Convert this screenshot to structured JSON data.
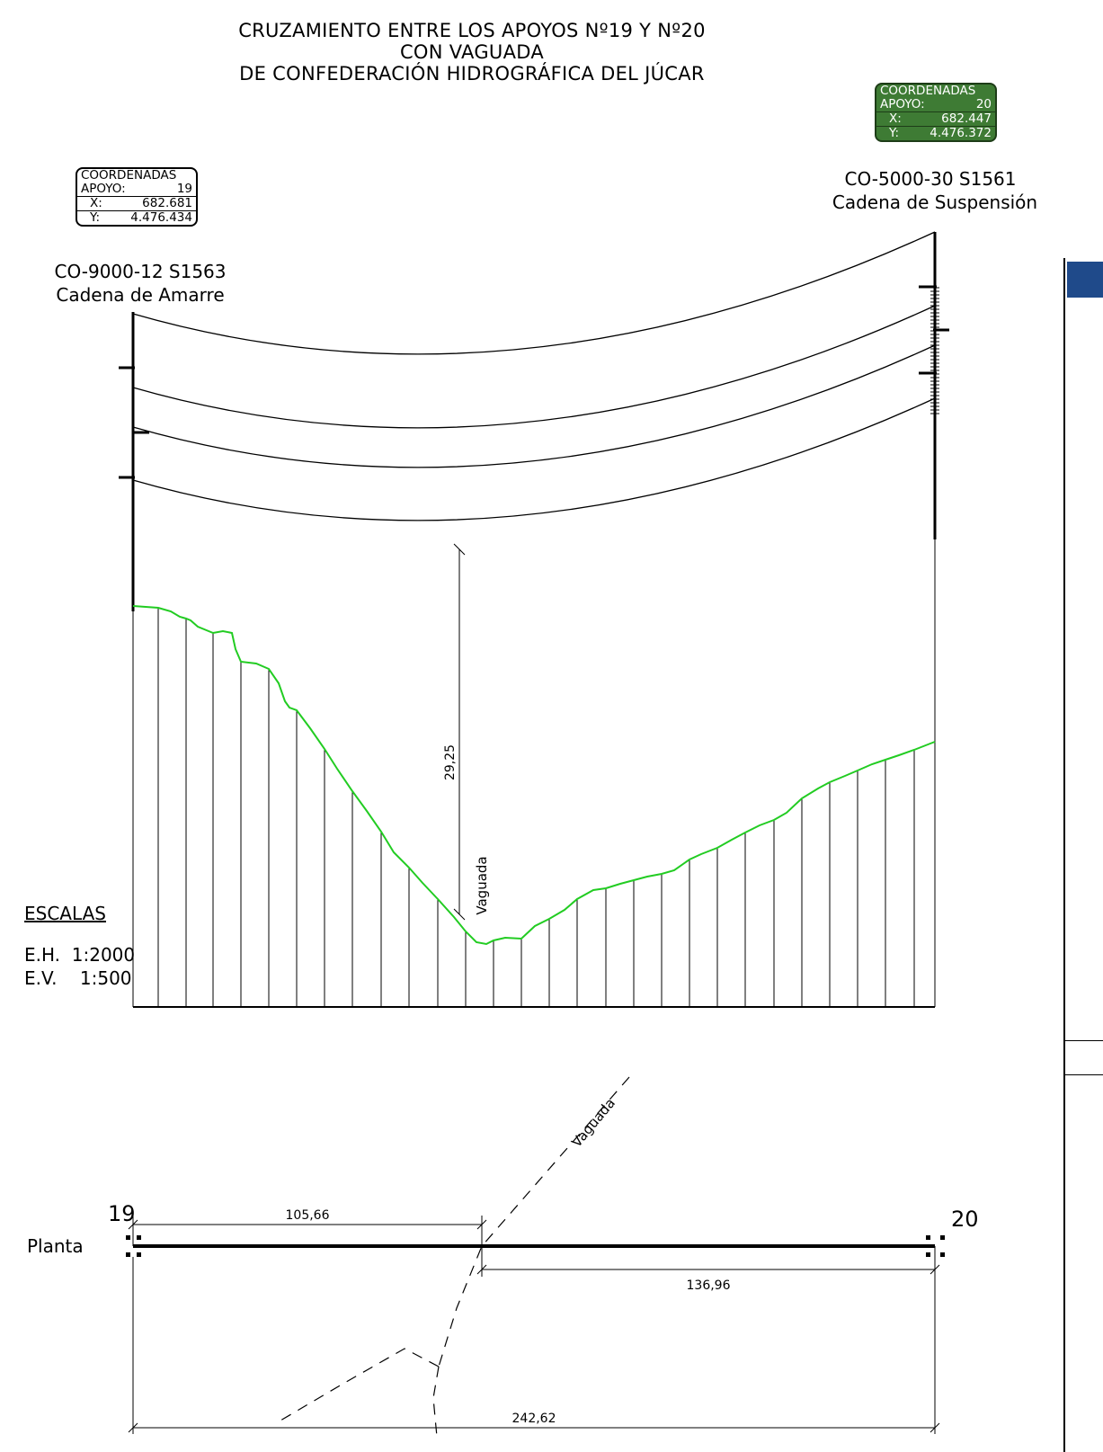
{
  "title": {
    "line1": "CRUZAMIENTO ENTRE LOS APOYOS Nº19 Y Nº20",
    "line2": "CON VAGUADA",
    "line3": "DE CONFEDERACIÓN HIDROGRÁFICA DEL JÚCAR"
  },
  "support19": {
    "coord_title": "COORDENADAS",
    "apoyo_label": "APOYO:",
    "apoyo_num": "19",
    "x_label": "X:",
    "x_value": "682.681",
    "y_label": "Y:",
    "y_value": "4.476.434",
    "model": "CO-9000-12 S1563",
    "chain": "Cadena de Amarre"
  },
  "support20": {
    "coord_title": "COORDENADAS",
    "apoyo_label": "APOYO:",
    "apoyo_num": "20",
    "x_label": "X:",
    "x_value": "682.447",
    "y_label": "Y:",
    "y_value": "4.476.372",
    "model": "CO-5000-30 S1561",
    "chain": "Cadena de Suspensión",
    "box_color": "#3e7b34"
  },
  "profile": {
    "clearance": "29,25",
    "vaguada_label": "Vaguada",
    "terrain_color": "#22cc22"
  },
  "scales": {
    "heading": "ESCALAS",
    "horizontal": "E.H.  1:2000",
    "vertical": "E.V.    1:500"
  },
  "plan": {
    "label": "Planta",
    "support_a": "19",
    "support_b": "20",
    "dist_a": "105,66",
    "dist_b": "136,96",
    "dist_total": "242,62",
    "vaguada_label": "Vaguada"
  }
}
